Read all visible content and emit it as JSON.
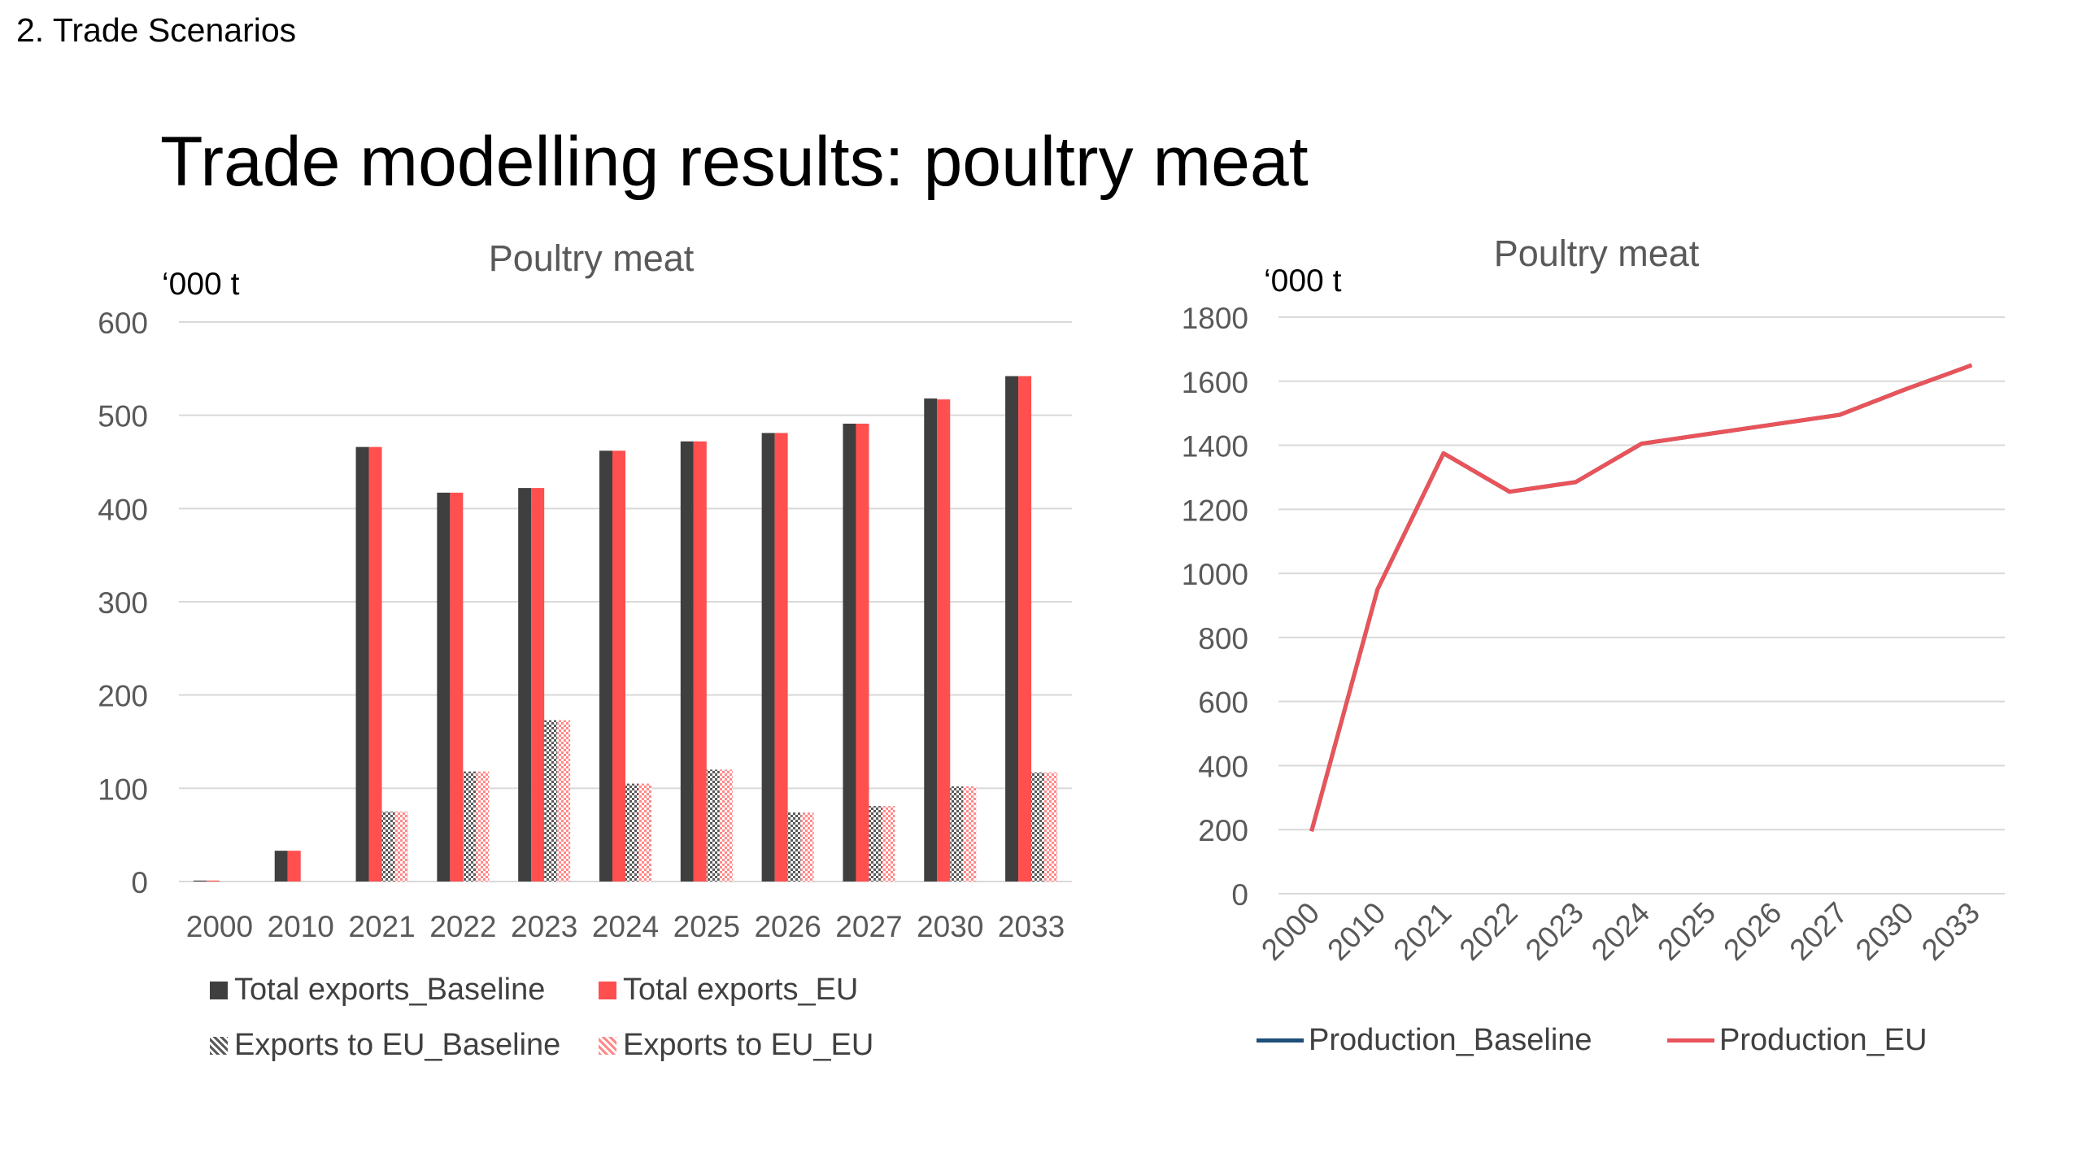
{
  "page": {
    "section_label": "2. Trade Scenarios",
    "title": "Trade modelling results: poultry meat"
  },
  "colors": {
    "baseline_bar": "#3f3f3f",
    "eu_bar": "#ff4f4f",
    "exports_baseline_pattern": "#5a5a5a",
    "exports_eu_pattern": "#ff8a8a",
    "production_baseline": "#1f4e79",
    "production_eu": "#e8545a",
    "gridline": "#d9d9d9",
    "tick_text": "#595959"
  },
  "chart_data": [
    {
      "type": "bar",
      "title": "Poultry meat",
      "unit_label": "‘000 t",
      "categories": [
        "2000",
        "2010",
        "2021",
        "2022",
        "2023",
        "2024",
        "2025",
        "2026",
        "2027",
        "2030",
        "2033"
      ],
      "ylim": [
        0,
        600
      ],
      "yticks": [
        "600",
        "500",
        "400",
        "300",
        "200",
        "100",
        "0"
      ],
      "grid": true,
      "legend_position": "bottom",
      "series": [
        {
          "name": "Total exports_Baseline",
          "values": [
            1,
            33,
            466,
            417,
            422,
            462,
            472,
            481,
            491,
            518,
            542
          ],
          "pattern": "solid-dark"
        },
        {
          "name": "Total exports_EU",
          "values": [
            1,
            33,
            466,
            417,
            422,
            462,
            472,
            481,
            491,
            517,
            542
          ],
          "pattern": "solid-red"
        },
        {
          "name": "Exports to EU_Baseline",
          "values": [
            0,
            0,
            75,
            118,
            173,
            105,
            120,
            74,
            81,
            102,
            117
          ],
          "pattern": "hatch-dark"
        },
        {
          "name": "Exports to EU_EU",
          "values": [
            0,
            0,
            75,
            118,
            173,
            105,
            120,
            74,
            81,
            102,
            117
          ],
          "pattern": "hatch-red"
        }
      ]
    },
    {
      "type": "line",
      "title": "Poultry meat",
      "unit_label": "‘000 t",
      "categories": [
        "2000",
        "2010",
        "2021",
        "2022",
        "2023",
        "2024",
        "2025",
        "2026",
        "2027",
        "2030",
        "2033"
      ],
      "ylim": [
        0,
        1800
      ],
      "yticks": [
        "1800",
        "1600",
        "1400",
        "1200",
        "1000",
        "800",
        "600",
        "400",
        "200",
        "0"
      ],
      "grid": true,
      "legend_position": "bottom",
      "series": [
        {
          "name": "Production_Baseline",
          "values": [
            195,
            950,
            1375,
            1255,
            1285,
            1405,
            1435,
            1465,
            1495,
            1575,
            1650
          ]
        },
        {
          "name": "Production_EU",
          "values": [
            195,
            950,
            1375,
            1255,
            1285,
            1405,
            1435,
            1465,
            1495,
            1575,
            1650
          ]
        }
      ]
    }
  ]
}
